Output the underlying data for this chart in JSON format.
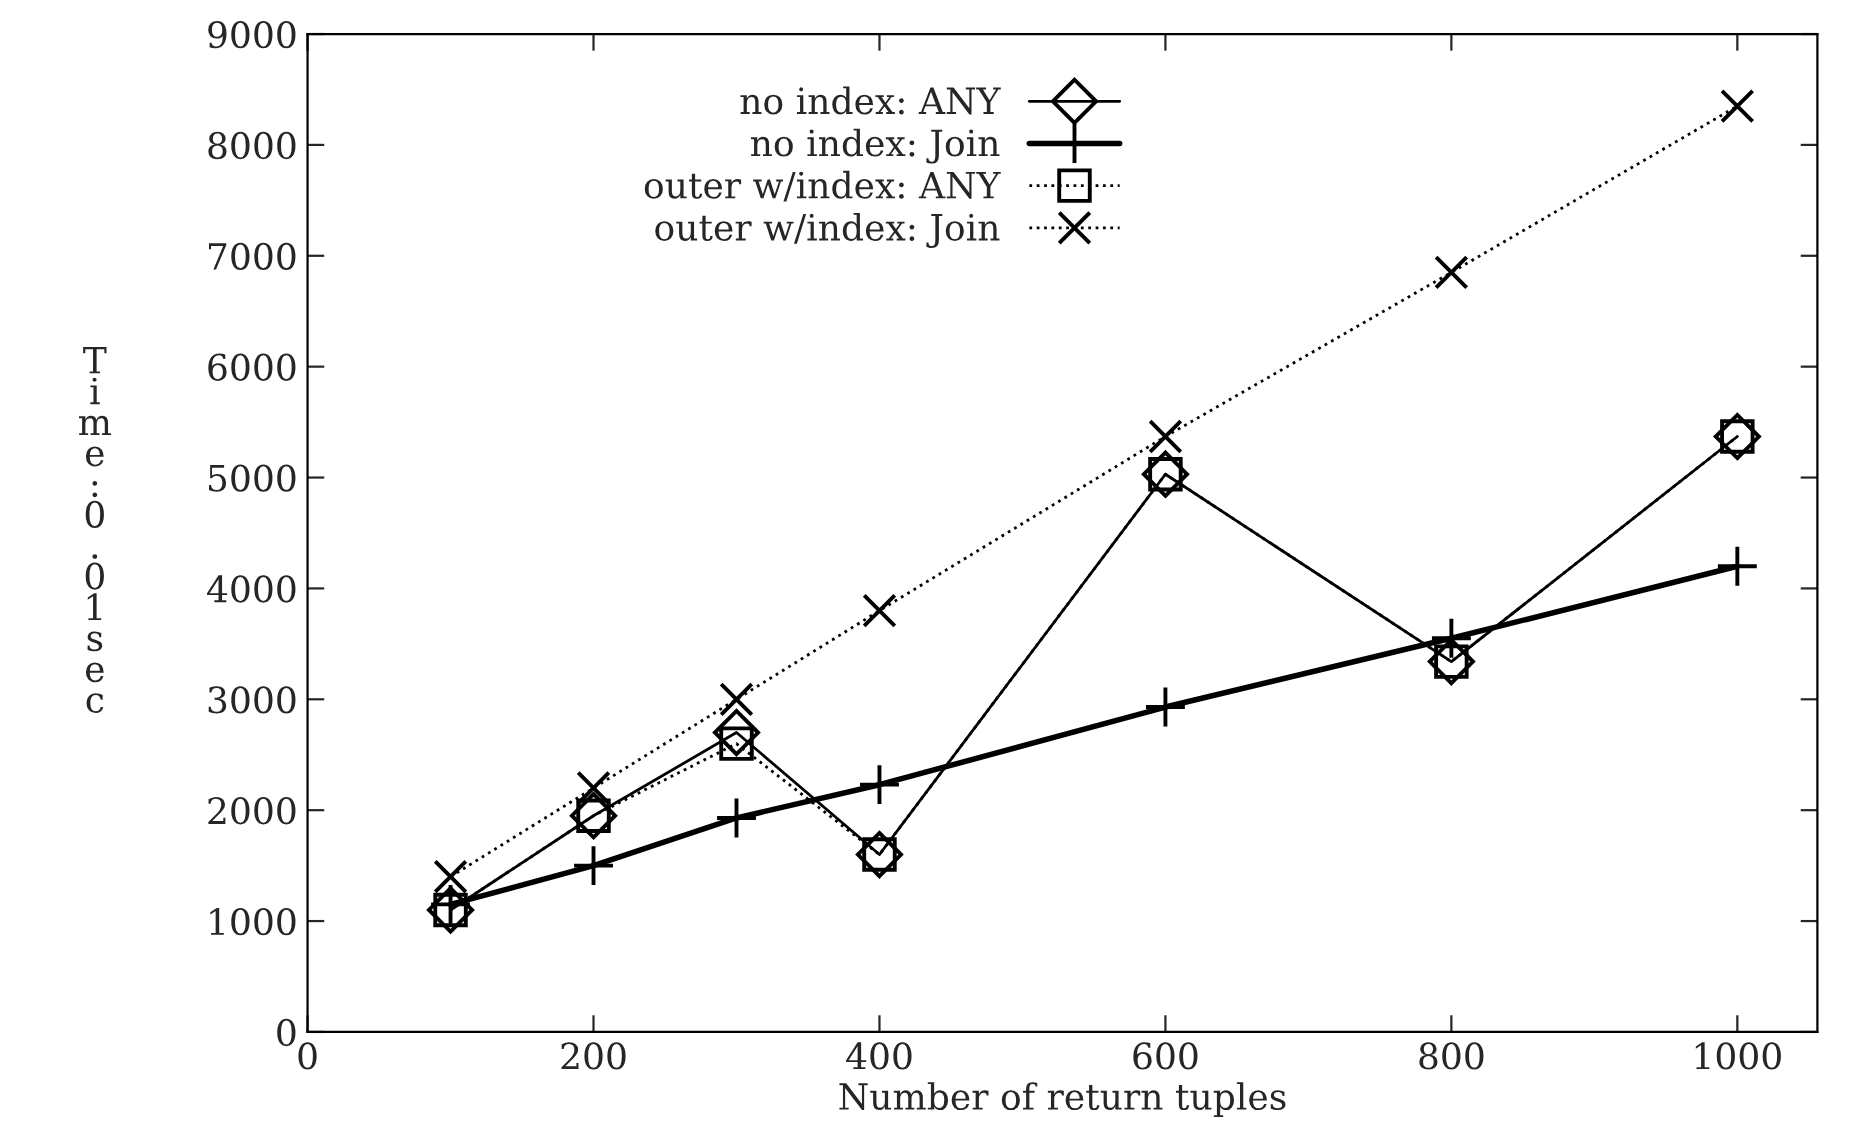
{
  "chart_data": {
    "type": "line",
    "xlabel": "Number of return tuples",
    "ylabel": "Time: 0.01sec",
    "x": [
      100,
      200,
      300,
      400,
      600,
      800,
      1000
    ],
    "series": [
      {
        "name": "no index: ANY",
        "color": "#000000",
        "marker": "diamond",
        "line_style": "solid",
        "values": [
          1100,
          1950,
          2700,
          1600,
          5030,
          3340,
          5370
        ]
      },
      {
        "name": "no index: Join",
        "color": "#000000",
        "marker": "cross",
        "line_style": "solid",
        "values": [
          1150,
          1500,
          1930,
          2230,
          2930,
          3550,
          4200
        ]
      },
      {
        "name": "outer w/index: ANY",
        "color": "#000000",
        "marker": "square",
        "line_style": "dotted",
        "values": [
          1100,
          1950,
          2600,
          1600,
          5030,
          3340,
          5370
        ]
      },
      {
        "name": "outer w/index: Join",
        "color": "#000000",
        "marker": "x",
        "line_style": "dotted",
        "values": [
          1400,
          2200,
          3000,
          3800,
          5370,
          6850,
          8350
        ]
      }
    ],
    "xlim": [
      0,
      1056
    ],
    "ylim": [
      0,
      9000
    ],
    "xticks": [
      0,
      200,
      400,
      600,
      800,
      1000
    ],
    "yticks": [
      0,
      1000,
      2000,
      3000,
      4000,
      5000,
      6000,
      7000,
      8000,
      9000
    ],
    "grid": false,
    "legend": "top"
  }
}
